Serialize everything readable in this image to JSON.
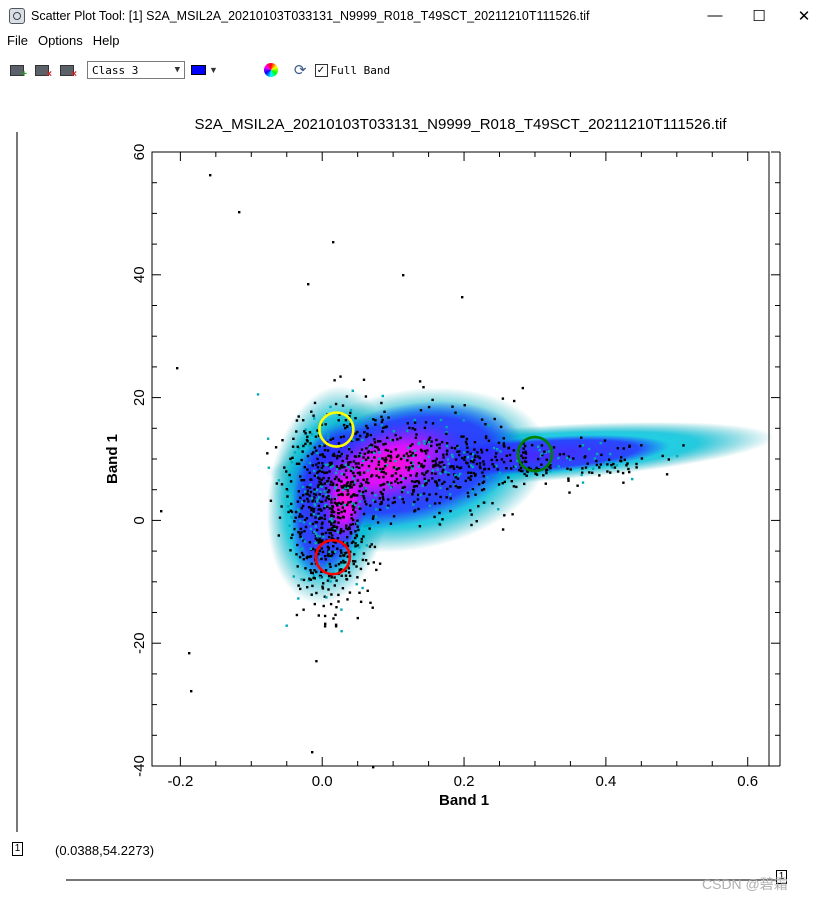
{
  "window": {
    "title": "Scatter Plot Tool: [1] S2A_MSIL2A_20210103T033131_N9999_R018_T49SCT_20211210T111526.tif",
    "minimize_glyph": "—",
    "maximize_glyph": "☐",
    "close_glyph": "✕"
  },
  "menu": {
    "file": "File",
    "options": "Options",
    "help": "Help"
  },
  "toolbar": {
    "class_select": "Class 3",
    "class_color": "#0000ff",
    "full_band_checked": true,
    "full_band_label": "Full Band",
    "icons": [
      "add-class-icon",
      "delete-class-icon",
      "delete-all-classes-icon",
      "color-wheel-icon",
      "refresh-icon"
    ]
  },
  "plot": {
    "title": "S2A_MSIL2A_20210103T033131_N9999_R018_T49SCT_20211210T111526.tif"
  },
  "chart_data": {
    "type": "scatter",
    "title": "S2A_MSIL2A_20210103T033131_N9999_R018_T49SCT_20211210T111526.tif",
    "xlabel": "Band 1",
    "ylabel": "Band 1",
    "xlim": [
      -0.24,
      0.63
    ],
    "ylim": [
      -40,
      60
    ],
    "xticks": [
      -0.2,
      0.0,
      0.2,
      0.4,
      0.6
    ],
    "xtick_labels": [
      "-0.2",
      "0.0",
      "0.2",
      "0.4",
      "0.6"
    ],
    "yticks": [
      -40,
      -20,
      0,
      20,
      40,
      60
    ],
    "ytick_labels": [
      "-40",
      "-20",
      "0",
      "20",
      "40",
      "60"
    ],
    "density_colormap": [
      "#000000",
      "#00ffff",
      "#0000ff",
      "#ff00ff"
    ],
    "markers": [
      {
        "color": "#ffff00",
        "x": 0.02,
        "y": 14.8
      },
      {
        "color": "#ff0000",
        "x": 0.015,
        "y": -6.0
      },
      {
        "color": "#008000",
        "x": 0.3,
        "y": 10.8
      }
    ]
  },
  "status": {
    "coordinate": "(0.0388,54.2273)",
    "left_badge": "1",
    "right_badge": "1",
    "watermark": "CSDN @碧霜"
  }
}
